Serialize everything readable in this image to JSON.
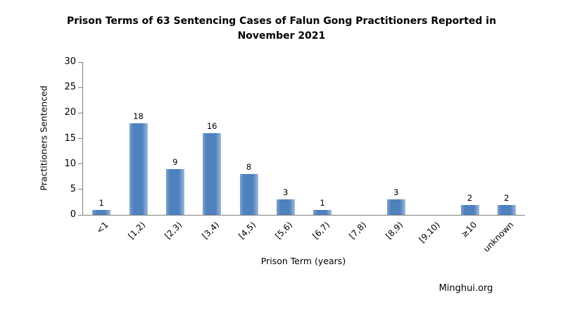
{
  "chart_data": {
    "type": "bar",
    "title": "Prison Terms of 63 Sentencing Cases of Falun Gong Practitioners Reported in November 2021",
    "categories": [
      "<1",
      "[1,2)",
      "[2,3)",
      "[3,4)",
      "[4,5)",
      "[5,6)",
      "[6,7)",
      "[7,8)",
      "[8,9)",
      "[9,10)",
      "≥10",
      "unknown"
    ],
    "values": [
      1,
      18,
      9,
      16,
      8,
      3,
      1,
      0,
      3,
      0,
      2,
      2
    ],
    "total_cases": 63,
    "xlabel": "Prison Term (years)",
    "ylabel": "Practitioners Sentenced",
    "ylim": [
      0,
      30
    ],
    "yticks": [
      0,
      5,
      10,
      15,
      20,
      25,
      30
    ],
    "grid": false,
    "legend_position": "none",
    "bar_color": "#4f81bd",
    "axis_color": "#808080",
    "source": "Minghui.org"
  }
}
